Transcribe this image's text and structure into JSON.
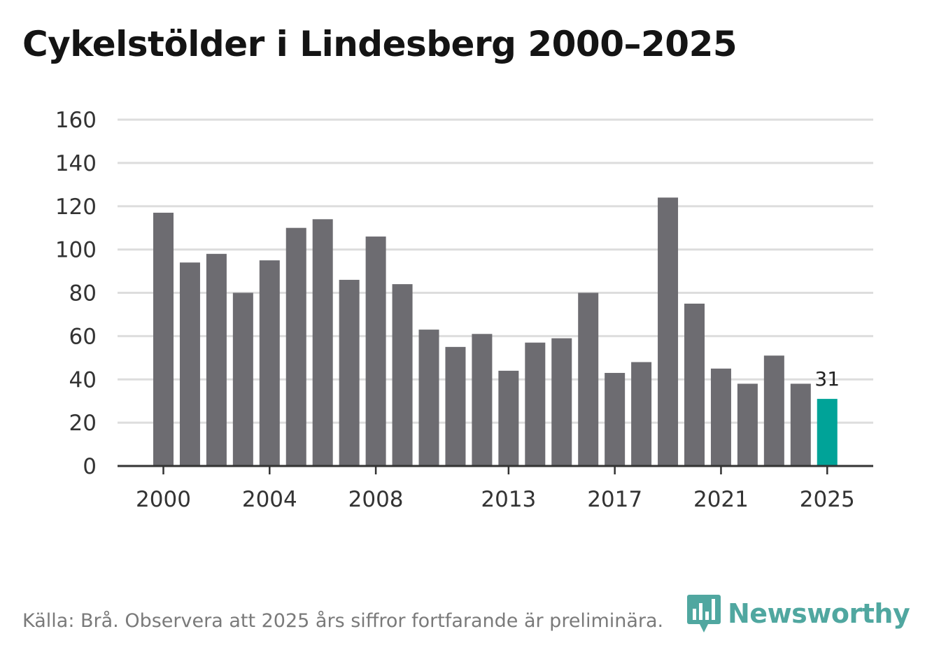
{
  "title": "Cykelstölder i Lindesberg 2000–2025",
  "source": "Källa: Brå. Observera att 2025 års siffror fortfarande är preliminära.",
  "brand": {
    "name": "Newsworthy",
    "icon": "newsworthy-logo-icon"
  },
  "colors": {
    "bar": "#6d6c71",
    "highlight": "#00a398",
    "grid": "#dddddd",
    "axis": "#333333",
    "brand": "#3e9e96"
  },
  "chart_data": {
    "type": "bar",
    "title": "Cykelstölder i Lindesberg 2000–2025",
    "xlabel": "",
    "ylabel": "",
    "categories": [
      2000,
      2001,
      2002,
      2003,
      2004,
      2005,
      2006,
      2007,
      2008,
      2009,
      2010,
      2011,
      2012,
      2013,
      2014,
      2015,
      2016,
      2017,
      2018,
      2019,
      2020,
      2021,
      2022,
      2023,
      2024,
      2025
    ],
    "values": [
      117,
      94,
      98,
      80,
      95,
      110,
      114,
      86,
      106,
      84,
      63,
      55,
      61,
      44,
      57,
      59,
      80,
      43,
      48,
      124,
      75,
      45,
      38,
      51,
      38,
      31
    ],
    "ylim": [
      0,
      160
    ],
    "yticks": [
      0,
      20,
      40,
      60,
      80,
      100,
      120,
      140,
      160
    ],
    "xtick_labels": [
      "2000",
      "2004",
      "2008",
      "2013",
      "2017",
      "2021",
      "2025"
    ],
    "highlight": {
      "category": 2025,
      "label": "31"
    },
    "grid": true
  }
}
